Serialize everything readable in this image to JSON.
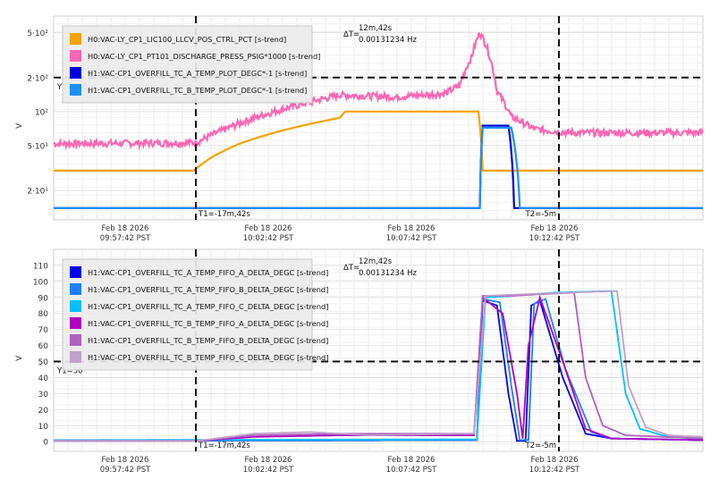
{
  "chart_data": [
    {
      "type": "line",
      "ylabel": "V",
      "yscale": "log",
      "ylim": [
        11,
        700
      ],
      "y_ticks": [
        {
          "label": "5·10¹",
          "value": 50
        },
        {
          "label": "10²",
          "value": 100
        },
        {
          "label": "2·10²",
          "value": 200
        },
        {
          "label": "5·10²",
          "value": 500
        },
        {
          "label": "2·10¹",
          "value": 20
        }
      ],
      "x_ticks": [
        {
          "line1": "Feb 18 2026",
          "line2": "09:57:42 PST",
          "minute": 0
        },
        {
          "line1": "Feb 18 2026",
          "line2": "10:02:42 PST",
          "minute": 5
        },
        {
          "line1": "Feb 18 2026",
          "line2": "10:07:42 PST",
          "minute": 10
        },
        {
          "line1": "Feb 18 2026",
          "line2": "10:12:42 PST",
          "minute": 15
        }
      ],
      "xlim": [
        0,
        22.7
      ],
      "legend_position": "top-left",
      "series": [
        {
          "name": "H0:VAC-LY_CP1_LIC100_LLCV_POS_CTRL_PCT [s-trend]",
          "color": "#f5a300",
          "points": [
            [
              0,
              30
            ],
            [
              4.9,
              30
            ],
            [
              5.5,
              39
            ],
            [
              6.5,
              52
            ],
            [
              8,
              68
            ],
            [
              10,
              88
            ],
            [
              10.2,
              100
            ],
            [
              14.85,
              100
            ],
            [
              15,
              30
            ],
            [
              22.7,
              30
            ]
          ]
        },
        {
          "name": "H0:VAC-LY_CP1_PT101_DISCHARGE_PRESS_PSIG*1000 [s-trend]",
          "color": "#ff66b3",
          "points": [
            [
              0,
              52
            ],
            [
              5,
              53
            ],
            [
              6,
              70
            ],
            [
              8,
              105
            ],
            [
              10,
              140
            ],
            [
              12,
              135
            ],
            [
              13.7,
              145
            ],
            [
              14.2,
              170
            ],
            [
              14.6,
              300
            ],
            [
              14.9,
              500
            ],
            [
              15.1,
              400
            ],
            [
              15.5,
              150
            ],
            [
              16,
              90
            ],
            [
              16.8,
              70
            ],
            [
              18,
              65
            ],
            [
              22.7,
              65
            ]
          ]
        },
        {
          "name": "H1:VAC-CP1_OVERFILL_TC_A_TEMP_PLOT_DEGC*-1 [s-trend]",
          "color": "#0000dd",
          "points": [
            [
              0,
              14
            ],
            [
              14.9,
              14
            ],
            [
              15,
              75
            ],
            [
              15.9,
              75
            ],
            [
              16.1,
              14
            ],
            [
              22.7,
              14
            ]
          ]
        },
        {
          "name": "H1:VAC-CP1_OVERFILL_TC_B_TEMP_PLOT_DEGC*-1 [s-trend]",
          "color": "#1e90ff",
          "points": [
            [
              0,
              14
            ],
            [
              14.9,
              14
            ],
            [
              15,
              72
            ],
            [
              16,
              72
            ],
            [
              16.3,
              14
            ],
            [
              22.7,
              14
            ]
          ]
        }
      ],
      "annotations": {
        "cursor_t1": {
          "label": "T1=-17m,42s",
          "minute": 5
        },
        "cursor_t2": {
          "label": "T2=-5m",
          "minute": 17.7
        },
        "y1_line": {
          "label": "Y1=200",
          "value": 200
        },
        "delta_t": {
          "label": "ΔT=",
          "line1": "12m,42s",
          "line2": "0.00131234 Hz"
        }
      }
    },
    {
      "type": "line",
      "ylabel": "V",
      "ylim": [
        -6,
        120
      ],
      "y_ticks": [
        {
          "label": "0",
          "value": 0
        },
        {
          "label": "10",
          "value": 10
        },
        {
          "label": "20",
          "value": 20
        },
        {
          "label": "30",
          "value": 30
        },
        {
          "label": "40",
          "value": 40
        },
        {
          "label": "50",
          "value": 50
        },
        {
          "label": "60",
          "value": 60
        },
        {
          "label": "70",
          "value": 70
        },
        {
          "label": "80",
          "value": 80
        },
        {
          "label": "90",
          "value": 90
        },
        {
          "label": "100",
          "value": 100
        },
        {
          "label": "110",
          "value": 110
        }
      ],
      "x_ticks": [
        {
          "line1": "Feb 18 2026",
          "line2": "09:57:42 PST",
          "minute": 0
        },
        {
          "line1": "Feb 18 2026",
          "line2": "10:02:42 PST",
          "minute": 5
        },
        {
          "line1": "Feb 18 2026",
          "line2": "10:07:42 PST",
          "minute": 10
        },
        {
          "line1": "Feb 18 2026",
          "line2": "10:12:42 PST",
          "minute": 15
        }
      ],
      "xlim": [
        0,
        22.7
      ],
      "legend_position": "top-left",
      "series": [
        {
          "name": "H1:VAC-CP1_OVERFILL_TC_A_TEMP_FIFO_A_DELTA_DEGC [s-trend]",
          "color": "#0000ee",
          "points": [
            [
              0,
              0.5
            ],
            [
              14.8,
              1
            ],
            [
              15,
              88
            ],
            [
              15.5,
              85
            ],
            [
              15.9,
              30
            ],
            [
              16.2,
              0.5
            ],
            [
              16.5,
              0.5
            ],
            [
              16.7,
              85
            ],
            [
              17,
              88
            ],
            [
              17.8,
              40
            ],
            [
              18.6,
              5
            ],
            [
              19.5,
              2
            ],
            [
              22.7,
              1
            ]
          ]
        },
        {
          "name": "H1:VAC-CP1_OVERFILL_TC_A_TEMP_FIFO_B_DELTA_DEGC [s-trend]",
          "color": "#1e7fff",
          "points": [
            [
              0,
              0.5
            ],
            [
              14.8,
              1
            ],
            [
              15,
              89
            ],
            [
              15.6,
              87
            ],
            [
              16,
              35
            ],
            [
              16.3,
              1
            ],
            [
              16.6,
              1
            ],
            [
              16.8,
              86
            ],
            [
              17.2,
              89
            ],
            [
              17.9,
              45
            ],
            [
              18.8,
              6
            ],
            [
              19.5,
              2
            ],
            [
              22.7,
              1
            ]
          ]
        },
        {
          "name": "H1:VAC-CP1_OVERFILL_TC_A_TEMP_FIFO_C_DELTA_DEGC [s-trend]",
          "color": "#00c0ff",
          "points": [
            [
              0,
              1
            ],
            [
              14.8,
              1.5
            ],
            [
              15.1,
              90
            ],
            [
              16,
              91
            ],
            [
              17.5,
              93
            ],
            [
              19.5,
              94
            ],
            [
              20,
              30
            ],
            [
              20.5,
              8
            ],
            [
              21.5,
              3
            ],
            [
              22.7,
              2
            ]
          ]
        },
        {
          "name": "H1:VAC-CP1_OVERFILL_TC_B_TEMP_FIFO_A_DELTA_DEGC [s-trend]",
          "color": "#b000c0",
          "points": [
            [
              0,
              0.5
            ],
            [
              5,
              0.5
            ],
            [
              7,
              3
            ],
            [
              10,
              4
            ],
            [
              14.7,
              4
            ],
            [
              15,
              90
            ],
            [
              15.7,
              80
            ],
            [
              16.2,
              30
            ],
            [
              16.4,
              2
            ],
            [
              16.6,
              60
            ],
            [
              17,
              90
            ],
            [
              17.8,
              50
            ],
            [
              18.6,
              8
            ],
            [
              19.5,
              2
            ],
            [
              22.7,
              1
            ]
          ]
        },
        {
          "name": "H1:VAC-CP1_OVERFILL_TC_B_TEMP_FIFO_B_DELTA_DEGC [s-trend]",
          "color": "#b060c0",
          "points": [
            [
              0,
              0.5
            ],
            [
              5,
              0.5
            ],
            [
              7,
              4
            ],
            [
              10,
              5
            ],
            [
              14.7,
              5
            ],
            [
              15,
              91
            ],
            [
              16,
              91
            ],
            [
              17,
              92
            ],
            [
              18.2,
              93
            ],
            [
              18.6,
              40
            ],
            [
              19.2,
              10
            ],
            [
              20,
              4
            ],
            [
              22.7,
              2
            ]
          ]
        },
        {
          "name": "H1:VAC-CP1_OVERFILL_TC_B_TEMP_FIFO_C_DELTA_DEGC [s-trend]",
          "color": "#c0a0c8",
          "points": [
            [
              0,
              0.5
            ],
            [
              5,
              0.5
            ],
            [
              7,
              5
            ],
            [
              9,
              6
            ],
            [
              11,
              4
            ],
            [
              14.7,
              5
            ],
            [
              15.1,
              91
            ],
            [
              16.5,
              92
            ],
            [
              18,
              93
            ],
            [
              19.7,
              94
            ],
            [
              20.1,
              35
            ],
            [
              20.7,
              9
            ],
            [
              21.5,
              4
            ],
            [
              22.7,
              3
            ]
          ]
        }
      ],
      "annotations": {
        "cursor_t1": {
          "label": "T1=-17m,42s",
          "minute": 5
        },
        "cursor_t2": {
          "label": "T2=-5m",
          "minute": 17.7
        },
        "y1_line": {
          "label": "Y1=50",
          "value": 50
        },
        "delta_t": {
          "label": "ΔT=",
          "line1": "12m,42s",
          "line2": "0.00131234 Hz"
        }
      }
    }
  ]
}
